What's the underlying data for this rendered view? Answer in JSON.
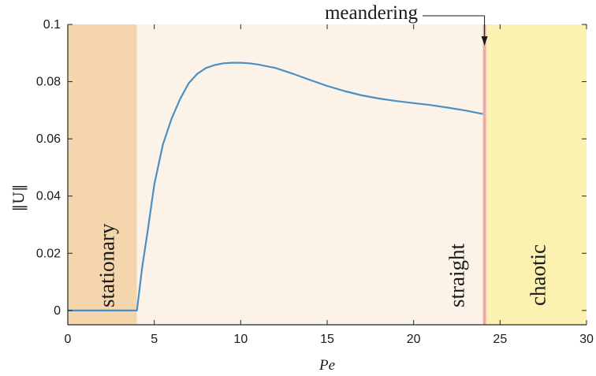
{
  "chart_data": {
    "type": "line",
    "title": "",
    "xlabel": "Pe",
    "ylabel": "‖U‖",
    "xlim": [
      0,
      30
    ],
    "ylim": [
      -0.005,
      0.1
    ],
    "xticks": [
      0,
      5,
      10,
      15,
      20,
      25,
      30
    ],
    "yticks": [
      0,
      0.02,
      0.04,
      0.06,
      0.08,
      0.1
    ],
    "xtick_labels": [
      "0",
      "5",
      "10",
      "15",
      "20",
      "25",
      "30"
    ],
    "ytick_labels": [
      "0",
      "0.02",
      "0.04",
      "0.06",
      "0.08",
      "0.1"
    ],
    "grid": false,
    "series": [
      {
        "color": "#4a90c2",
        "x": [
          0,
          1,
          2,
          3,
          4.0,
          4.3,
          4.6,
          5.0,
          5.5,
          6.0,
          6.5,
          7.0,
          7.5,
          8.0,
          8.5,
          9.0,
          9.5,
          10.0,
          10.5,
          11.0,
          12.0,
          13.0,
          14.0,
          15.0,
          16.0,
          17.0,
          18.0,
          19.0,
          20.0,
          21.0,
          22.0,
          23.0,
          24.0
        ],
        "y": [
          0,
          0,
          0,
          0,
          0,
          0.015,
          0.027,
          0.044,
          0.058,
          0.067,
          0.074,
          0.0795,
          0.0828,
          0.0848,
          0.0858,
          0.0864,
          0.0866,
          0.0866,
          0.0864,
          0.086,
          0.0848,
          0.0828,
          0.0806,
          0.0785,
          0.0767,
          0.0752,
          0.0741,
          0.0732,
          0.0725,
          0.0718,
          0.0709,
          0.0699,
          0.0687
        ]
      }
    ],
    "regions": [
      {
        "label": "stationary",
        "x": [
          0,
          4
        ],
        "color": "#f4d5ac"
      },
      {
        "label": "straight",
        "x": [
          4,
          24
        ],
        "color": "#fcf3e8"
      },
      {
        "label": "chaotic",
        "x": [
          24.2,
          30
        ],
        "color": "#fcf1b0"
      }
    ],
    "transition_line": {
      "x": 24.1,
      "color": "#f2a6a6"
    },
    "annotation": {
      "label": "meandering",
      "x": 24.1,
      "y": 0.1
    }
  }
}
